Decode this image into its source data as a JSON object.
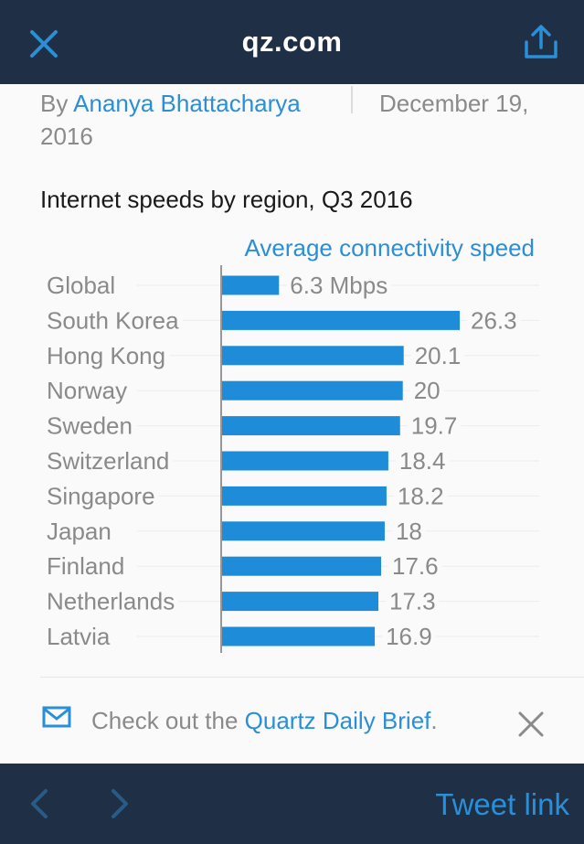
{
  "header": {
    "title": "qz.com",
    "close_icon": "close-icon",
    "share_icon": "share-icon",
    "accent_color": "#2a8fd6",
    "bar_color": "#1f3046"
  },
  "article": {
    "by_prefix": "By",
    "author": "Ananya Bhattacharya",
    "date_line1": "December 19,",
    "date_line2": "2016"
  },
  "chart_data": {
    "type": "bar",
    "orientation": "horizontal",
    "title": "Internet speeds by region, Q3 2016",
    "legend": "Average connectivity speed",
    "unit_suffix_first": " Mbps",
    "categories": [
      "Global",
      "South Korea",
      "Hong Kong",
      "Norway",
      "Sweden",
      "Switzerland",
      "Singapore",
      "Japan",
      "Finland",
      "Netherlands",
      "Latvia"
    ],
    "values": [
      6.3,
      26.3,
      20.1,
      20,
      19.7,
      18.4,
      18.2,
      18,
      17.6,
      17.3,
      16.9
    ],
    "value_labels": [
      "6.3 Mbps",
      "26.3",
      "20.1",
      "20",
      "19.7",
      "18.4",
      "18.2",
      "18",
      "17.6",
      "17.3",
      "16.9"
    ],
    "bar_color": "#1e8cd8",
    "grid": true
  },
  "newsletter": {
    "icon": "mail-icon",
    "prefix": "Check out the ",
    "link_text": "Quartz Daily Brief",
    "suffix": ".",
    "dismiss_icon": "close-icon"
  },
  "footer": {
    "back_icon": "chevron-left-icon",
    "forward_icon": "chevron-right-icon",
    "tweet_label": "Tweet link"
  }
}
